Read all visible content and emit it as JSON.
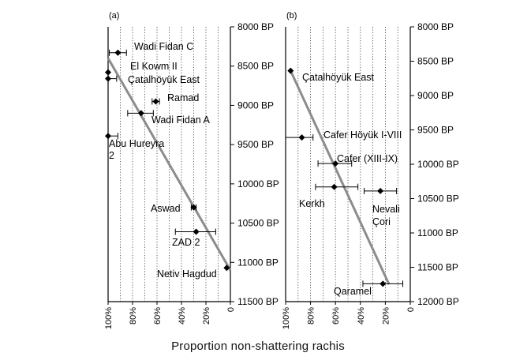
{
  "x_axis_title": "Proportion non-shattering rachis",
  "colors": {
    "marker": "#000000",
    "regression": "#8c8c8c",
    "grid": "#333333",
    "frame": "#000000"
  },
  "chart_data": [
    {
      "type": "scatter",
      "panel_label": "(a)",
      "x_ticks": [
        "100%",
        "80%",
        "60%",
        "40%",
        "20%",
        "0"
      ],
      "y_ticks": [
        "8000 BP",
        "8500 BP",
        "9000 BP",
        "9500 BP",
        "10000 BP",
        "10500 BP",
        "11000 BP",
        "11500 BP"
      ],
      "xlim": [
        100,
        0
      ],
      "ylim": [
        8000,
        11500
      ],
      "x_axis_reversed": true,
      "y_axis_position": "right",
      "grid": "vertical dotted",
      "trend_line": {
        "x": [
          100,
          0
        ],
        "y": [
          8400,
          11100
        ]
      },
      "points": [
        {
          "label": "Wadi Fidan C",
          "x": 92,
          "y": 8330,
          "x_err": [
            85,
            99
          ]
        },
        {
          "label": "El Kowm II",
          "x": 100,
          "y": 8580,
          "x_err": null
        },
        {
          "label": "Çatalhöyük East",
          "x": 100,
          "y": 8660,
          "x_err": [
            100,
            93
          ]
        },
        {
          "label": "Ramad",
          "x": 61,
          "y": 8950,
          "x_err": [
            58,
            64
          ]
        },
        {
          "label": "Wadi Fidan A",
          "x": 73,
          "y": 9100,
          "x_err": [
            63,
            84
          ]
        },
        {
          "label": "Abu Hureyra 2",
          "x": 100,
          "y": 9390,
          "x_err": [
            100,
            92
          ]
        },
        {
          "label": "Aswad",
          "x": 30,
          "y": 10300,
          "x_err": [
            28,
            32
          ]
        },
        {
          "label": "ZAD 2",
          "x": 28,
          "y": 10610,
          "x_err": [
            45,
            12
          ]
        },
        {
          "label": "Netiv Hagdud",
          "x": 3,
          "y": 11070,
          "x_err": null
        }
      ]
    },
    {
      "type": "scatter",
      "panel_label": "(b)",
      "x_ticks": [
        "100%",
        "80%",
        "60%",
        "40%",
        "20%",
        "0"
      ],
      "y_ticks": [
        "8000 BP",
        "8500 BP",
        "9000 BP",
        "9500 BP",
        "10000 BP",
        "10500 BP",
        "11000 BP",
        "11500 BP",
        "12000 BP"
      ],
      "xlim": [
        100,
        0
      ],
      "ylim": [
        8000,
        12000
      ],
      "x_axis_reversed": true,
      "y_axis_position": "right",
      "grid": "vertical dotted",
      "trend_line": {
        "x": [
          96,
          17
        ],
        "y": [
          8640,
          11750
        ]
      },
      "points": [
        {
          "label": "Çatalhöyük East",
          "x": 96,
          "y": 8640,
          "x_err": null
        },
        {
          "label": "Cafer Höyük I-VIII",
          "x": 87,
          "y": 9610,
          "x_err": [
            100,
            78
          ]
        },
        {
          "label": "Cafer (XIII-IX)",
          "x": 60,
          "y": 9990,
          "x_err": [
            74,
            47
          ]
        },
        {
          "label": "Kerkh",
          "x": 61,
          "y": 10330,
          "x_err": [
            76,
            42
          ]
        },
        {
          "label": "Nevali Çori",
          "x": 24,
          "y": 10390,
          "x_err": [
            37,
            11
          ]
        },
        {
          "label": "Qaramel",
          "x": 22,
          "y": 11740,
          "x_err": [
            38,
            6
          ]
        }
      ]
    }
  ]
}
